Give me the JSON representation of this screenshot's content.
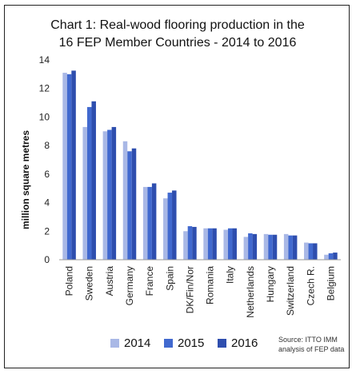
{
  "chart_data": {
    "type": "bar",
    "title": [
      "Chart 1: Real-wood flooring production in the",
      "16 FEP Member Countries - 2014 to 2016"
    ],
    "ylabel": "million square metres",
    "xlabel": "",
    "ylim": [
      0,
      14
    ],
    "yticks": [
      "0",
      "2",
      "4",
      "6",
      "8",
      "10",
      "12",
      "14"
    ],
    "categories": [
      "Poland",
      "Sweden",
      "Austria",
      "Germany",
      "France",
      "Spain",
      "DK/Fin/Nor",
      "Romania",
      "Italy",
      "Netherlands",
      "Hungary",
      "Switzerland",
      "Czech R.",
      "Belgium"
    ],
    "series": [
      {
        "name": "2014",
        "color": "#a9b8e6",
        "values": [
          13.1,
          9.3,
          9.0,
          8.3,
          5.1,
          4.3,
          2.0,
          2.2,
          2.1,
          1.6,
          1.8,
          1.8,
          1.2,
          0.35
        ]
      },
      {
        "name": "2015",
        "color": "#4169cf",
        "values": [
          13.0,
          10.7,
          9.1,
          7.6,
          5.1,
          4.7,
          2.35,
          2.2,
          2.2,
          1.85,
          1.75,
          1.7,
          1.15,
          0.45
        ]
      },
      {
        "name": "2016",
        "color": "#2e4eae",
        "values": [
          13.25,
          11.1,
          9.3,
          7.8,
          5.35,
          4.85,
          2.3,
          2.2,
          2.2,
          1.8,
          1.75,
          1.7,
          1.15,
          0.5
        ]
      }
    ],
    "grid": false,
    "legend_position": "bottom",
    "source": [
      "Source: ITTO IMM",
      "analysis of FEP data"
    ]
  }
}
